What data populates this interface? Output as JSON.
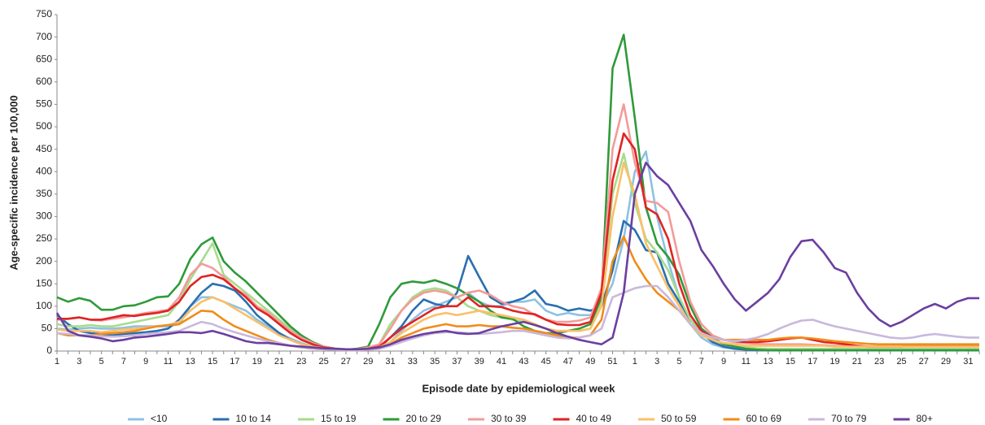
{
  "chart_data": {
    "type": "line",
    "y_label": "Age-specific incidence per 100,000",
    "x_label": "Episode date by epidemiological week",
    "categories": [
      "1",
      null,
      "3",
      null,
      "5",
      null,
      "7",
      null,
      "9",
      null,
      "11",
      null,
      "13",
      null,
      "15",
      null,
      "17",
      null,
      "19",
      null,
      "21",
      null,
      "23",
      null,
      "25",
      null,
      "27",
      null,
      "29",
      null,
      "31",
      null,
      "33",
      null,
      "35",
      null,
      "37",
      null,
      "39",
      null,
      "41",
      null,
      "43",
      null,
      "45",
      null,
      "47",
      null,
      "49",
      null,
      "51",
      null,
      "1",
      null,
      "3",
      null,
      "5",
      null,
      "7",
      null,
      "9",
      null,
      "11",
      null,
      "13",
      null,
      "15",
      null,
      "17",
      null,
      "19",
      null,
      "21",
      null,
      "23",
      null,
      "25",
      null,
      "27",
      null,
      "29",
      null,
      "31",
      null
    ],
    "ylim": [
      0,
      750
    ],
    "yticks": [
      0,
      50,
      100,
      150,
      200,
      250,
      300,
      350,
      400,
      450,
      500,
      550,
      600,
      650,
      700,
      750
    ],
    "grid": false,
    "series": [
      {
        "name": "<10",
        "color": "#8fc1e3",
        "values": [
          50,
          48,
          50,
          52,
          50,
          50,
          52,
          55,
          55,
          55,
          55,
          60,
          100,
          120,
          120,
          110,
          100,
          90,
          70,
          55,
          40,
          28,
          18,
          10,
          6,
          4,
          3,
          3,
          5,
          8,
          20,
          45,
          70,
          90,
          100,
          110,
          120,
          130,
          110,
          100,
          100,
          110,
          110,
          115,
          90,
          80,
          85,
          80,
          80,
          100,
          150,
          250,
          400,
          445,
          300,
          200,
          120,
          60,
          30,
          15,
          8,
          5,
          4,
          3,
          3,
          3,
          3,
          3,
          3,
          3,
          3,
          3,
          3,
          3,
          3,
          3,
          3,
          3,
          3,
          3,
          3,
          3,
          3,
          3
        ]
      },
      {
        "name": "10 to 14",
        "color": "#2a6fb0",
        "values": [
          80,
          60,
          45,
          40,
          38,
          35,
          38,
          40,
          42,
          45,
          50,
          70,
          100,
          130,
          150,
          145,
          135,
          110,
          80,
          60,
          40,
          25,
          15,
          10,
          5,
          3,
          2,
          2,
          3,
          8,
          30,
          55,
          90,
          115,
          105,
          100,
          130,
          212,
          165,
          120,
          105,
          110,
          118,
          135,
          105,
          100,
          90,
          95,
          90,
          100,
          180,
          290,
          270,
          225,
          220,
          150,
          110,
          70,
          40,
          20,
          10,
          5,
          3,
          2,
          2,
          2,
          2,
          2,
          2,
          2,
          2,
          2,
          2,
          2,
          2,
          2,
          2,
          2,
          2,
          2,
          2,
          2,
          2,
          2
        ]
      },
      {
        "name": "15 to 19",
        "color": "#a6dc8c",
        "values": [
          60,
          55,
          55,
          58,
          55,
          55,
          60,
          65,
          70,
          75,
          80,
          110,
          160,
          200,
          240,
          170,
          150,
          130,
          110,
          90,
          70,
          50,
          30,
          18,
          10,
          6,
          4,
          4,
          6,
          15,
          60,
          90,
          120,
          135,
          140,
          135,
          120,
          100,
          90,
          80,
          75,
          70,
          65,
          60,
          50,
          45,
          45,
          45,
          50,
          110,
          350,
          440,
          330,
          250,
          220,
          180,
          120,
          70,
          40,
          25,
          15,
          10,
          8,
          6,
          5,
          5,
          5,
          5,
          5,
          5,
          5,
          5,
          5,
          5,
          5,
          5,
          5,
          5,
          5,
          5,
          5,
          5,
          5,
          5
        ]
      },
      {
        "name": "20 to 29",
        "color": "#2f9a3a",
        "values": [
          120,
          110,
          118,
          112,
          92,
          92,
          100,
          102,
          110,
          120,
          122,
          150,
          205,
          238,
          253,
          200,
          175,
          155,
          130,
          105,
          80,
          55,
          35,
          20,
          10,
          5,
          3,
          5,
          10,
          60,
          120,
          150,
          155,
          152,
          158,
          150,
          140,
          125,
          110,
          90,
          75,
          72,
          55,
          45,
          40,
          40,
          45,
          50,
          60,
          120,
          630,
          705,
          520,
          320,
          240,
          210,
          170,
          100,
          50,
          30,
          15,
          10,
          5,
          3,
          2,
          2,
          2,
          2,
          2,
          2,
          2,
          2,
          2,
          2,
          2,
          2,
          2,
          2,
          2,
          2,
          2,
          2,
          2,
          2
        ]
      },
      {
        "name": "30 to 39",
        "color": "#f49a9a",
        "values": [
          70,
          72,
          75,
          70,
          68,
          72,
          75,
          80,
          85,
          88,
          92,
          120,
          170,
          195,
          185,
          165,
          140,
          125,
          100,
          85,
          65,
          45,
          30,
          18,
          10,
          5,
          3,
          4,
          8,
          15,
          50,
          90,
          115,
          130,
          135,
          130,
          120,
          130,
          135,
          125,
          110,
          100,
          95,
          80,
          70,
          65,
          65,
          68,
          75,
          140,
          450,
          550,
          420,
          335,
          330,
          310,
          200,
          110,
          60,
          35,
          25,
          20,
          18,
          16,
          15,
          15,
          15,
          15,
          14,
          13,
          12,
          12,
          10,
          10,
          10,
          10,
          10,
          10,
          10,
          10,
          10,
          10,
          10,
          10
        ]
      },
      {
        "name": "40 to 49",
        "color": "#e02323",
        "values": [
          72,
          72,
          75,
          70,
          70,
          75,
          80,
          78,
          82,
          85,
          90,
          110,
          145,
          165,
          170,
          160,
          140,
          120,
          95,
          80,
          60,
          40,
          25,
          15,
          8,
          5,
          3,
          3,
          5,
          10,
          30,
          50,
          65,
          80,
          95,
          100,
          100,
          120,
          100,
          100,
          98,
          90,
          85,
          82,
          70,
          60,
          58,
          58,
          65,
          130,
          380,
          485,
          450,
          320,
          305,
          250,
          150,
          80,
          45,
          30,
          25,
          22,
          20,
          20,
          22,
          25,
          28,
          30,
          25,
          20,
          18,
          15,
          12,
          10,
          10,
          10,
          10,
          12,
          12,
          12,
          12,
          12,
          12,
          12
        ]
      },
      {
        "name": "50 to 59",
        "color": "#fbbf6a",
        "values": [
          48,
          45,
          45,
          45,
          42,
          45,
          48,
          50,
          52,
          55,
          58,
          65,
          90,
          110,
          120,
          110,
          95,
          80,
          65,
          50,
          35,
          25,
          15,
          10,
          6,
          4,
          3,
          3,
          4,
          8,
          20,
          40,
          55,
          70,
          80,
          85,
          80,
          85,
          90,
          85,
          80,
          75,
          70,
          60,
          50,
          45,
          45,
          45,
          50,
          100,
          300,
          420,
          350,
          240,
          190,
          140,
          100,
          60,
          35,
          25,
          18,
          15,
          12,
          12,
          12,
          12,
          12,
          12,
          12,
          12,
          10,
          10,
          10,
          10,
          10,
          10,
          10,
          10,
          10,
          10,
          10,
          10,
          10,
          10
        ]
      },
      {
        "name": "60 to 69",
        "color": "#f08c1a",
        "values": [
          40,
          35,
          35,
          35,
          38,
          40,
          42,
          45,
          50,
          55,
          58,
          60,
          75,
          90,
          88,
          70,
          55,
          45,
          35,
          25,
          18,
          12,
          8,
          5,
          4,
          3,
          2,
          2,
          3,
          5,
          15,
          30,
          40,
          50,
          55,
          60,
          55,
          55,
          58,
          55,
          55,
          52,
          50,
          45,
          40,
          35,
          30,
          30,
          35,
          70,
          200,
          255,
          200,
          160,
          130,
          110,
          90,
          60,
          40,
          30,
          25,
          25,
          25,
          25,
          25,
          28,
          30,
          30,
          28,
          25,
          22,
          20,
          18,
          16,
          15,
          15,
          15,
          15,
          15,
          15,
          15,
          15,
          15,
          15
        ]
      },
      {
        "name": "70 to 79",
        "color": "#c9b8dc",
        "values": [
          40,
          38,
          35,
          35,
          33,
          32,
          33,
          35,
          38,
          40,
          42,
          45,
          55,
          65,
          60,
          50,
          42,
          35,
          28,
          22,
          18,
          12,
          8,
          5,
          4,
          3,
          2,
          2,
          3,
          5,
          12,
          20,
          28,
          35,
          40,
          42,
          42,
          40,
          38,
          40,
          42,
          45,
          45,
          40,
          35,
          30,
          28,
          30,
          35,
          50,
          120,
          130,
          140,
          145,
          145,
          120,
          90,
          60,
          40,
          30,
          25,
          22,
          25,
          30,
          38,
          50,
          60,
          68,
          70,
          62,
          55,
          50,
          45,
          40,
          35,
          30,
          28,
          30,
          35,
          38,
          35,
          32,
          30,
          30
        ]
      },
      {
        "name": "80+",
        "color": "#6b3fa0",
        "values": [
          85,
          45,
          35,
          32,
          28,
          22,
          25,
          30,
          32,
          35,
          38,
          42,
          42,
          40,
          45,
          38,
          30,
          22,
          18,
          18,
          15,
          12,
          10,
          8,
          6,
          5,
          4,
          4,
          5,
          8,
          15,
          25,
          32,
          38,
          42,
          45,
          40,
          38,
          40,
          48,
          55,
          60,
          65,
          58,
          50,
          40,
          32,
          25,
          20,
          15,
          30,
          130,
          350,
          420,
          390,
          370,
          330,
          290,
          225,
          190,
          150,
          115,
          90,
          110,
          130,
          160,
          210,
          245,
          248,
          220,
          185,
          175,
          130,
          95,
          70,
          55,
          65,
          80,
          95,
          105,
          95,
          110,
          118,
          118
        ]
      }
    ]
  }
}
